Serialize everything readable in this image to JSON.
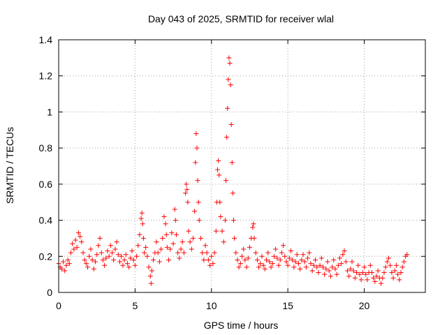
{
  "chart_data": {
    "type": "scatter",
    "title": "Day 043 of 2025, SRMTID for receiver wlal",
    "xlabel": "GPS time / hours",
    "ylabel": "SRMTID / TECUs",
    "xlim": [
      0,
      24
    ],
    "ylim": [
      0,
      1.4
    ],
    "xticks": [
      0,
      5,
      10,
      15,
      20
    ],
    "yticks": [
      0,
      0.2,
      0.4,
      0.6,
      0.8,
      1,
      1.2,
      1.4
    ],
    "xtick_labels": [
      "0",
      "5",
      "10",
      "15",
      "20"
    ],
    "ytick_labels": [
      "0",
      "0.2",
      "0.4",
      "0.6",
      "0.8",
      "1",
      "1.2",
      "1.4"
    ],
    "grid": true,
    "marker": "plus",
    "color": "#ff0000",
    "series": [
      {
        "name": "SRMTID",
        "points": [
          [
            0.0,
            0.16
          ],
          [
            0.1,
            0.14
          ],
          [
            0.2,
            0.13
          ],
          [
            0.3,
            0.17
          ],
          [
            0.4,
            0.12
          ],
          [
            0.5,
            0.15
          ],
          [
            0.6,
            0.18
          ],
          [
            0.7,
            0.16
          ],
          [
            0.8,
            0.22
          ],
          [
            0.9,
            0.27
          ],
          [
            1.0,
            0.24
          ],
          [
            1.1,
            0.29
          ],
          [
            1.2,
            0.25
          ],
          [
            1.3,
            0.33
          ],
          [
            1.4,
            0.31
          ],
          [
            1.5,
            0.28
          ],
          [
            1.6,
            0.22
          ],
          [
            1.7,
            0.18
          ],
          [
            1.8,
            0.16
          ],
          [
            1.9,
            0.14
          ],
          [
            2.0,
            0.2
          ],
          [
            2.1,
            0.24
          ],
          [
            2.2,
            0.18
          ],
          [
            2.3,
            0.13
          ],
          [
            2.4,
            0.17
          ],
          [
            2.5,
            0.21
          ],
          [
            2.6,
            0.26
          ],
          [
            2.7,
            0.3
          ],
          [
            2.8,
            0.22
          ],
          [
            2.9,
            0.18
          ],
          [
            3.0,
            0.15
          ],
          [
            3.1,
            0.19
          ],
          [
            3.2,
            0.23
          ],
          [
            3.3,
            0.2
          ],
          [
            3.4,
            0.26
          ],
          [
            3.5,
            0.22
          ],
          [
            3.6,
            0.18
          ],
          [
            3.7,
            0.24
          ],
          [
            3.8,
            0.28
          ],
          [
            3.9,
            0.21
          ],
          [
            4.0,
            0.17
          ],
          [
            4.1,
            0.2
          ],
          [
            4.2,
            0.15
          ],
          [
            4.3,
            0.18
          ],
          [
            4.4,
            0.21
          ],
          [
            4.5,
            0.16
          ],
          [
            4.6,
            0.14
          ],
          [
            4.7,
            0.19
          ],
          [
            4.8,
            0.23
          ],
          [
            4.9,
            0.18
          ],
          [
            5.0,
            0.15
          ],
          [
            5.1,
            0.2
          ],
          [
            5.2,
            0.26
          ],
          [
            5.3,
            0.32
          ],
          [
            5.4,
            0.41
          ],
          [
            5.45,
            0.44
          ],
          [
            5.5,
            0.38
          ],
          [
            5.55,
            0.3
          ],
          [
            5.6,
            0.22
          ],
          [
            5.7,
            0.25
          ],
          [
            5.8,
            0.2
          ],
          [
            5.9,
            0.14
          ],
          [
            6.0,
            0.09
          ],
          [
            6.05,
            0.05
          ],
          [
            6.1,
            0.12
          ],
          [
            6.2,
            0.18
          ],
          [
            6.3,
            0.22
          ],
          [
            6.4,
            0.28
          ],
          [
            6.5,
            0.22
          ],
          [
            6.6,
            0.17
          ],
          [
            6.7,
            0.24
          ],
          [
            6.8,
            0.3
          ],
          [
            6.9,
            0.42
          ],
          [
            7.0,
            0.38
          ],
          [
            7.05,
            0.32
          ],
          [
            7.1,
            0.25
          ],
          [
            7.2,
            0.18
          ],
          [
            7.3,
            0.24
          ],
          [
            7.4,
            0.33
          ],
          [
            7.5,
            0.27
          ],
          [
            7.6,
            0.46
          ],
          [
            7.65,
            0.4
          ],
          [
            7.7,
            0.32
          ],
          [
            7.8,
            0.22
          ],
          [
            7.9,
            0.19
          ],
          [
            8.0,
            0.24
          ],
          [
            8.1,
            0.28
          ],
          [
            8.2,
            0.22
          ],
          [
            8.3,
            0.55
          ],
          [
            8.35,
            0.6
          ],
          [
            8.4,
            0.57
          ],
          [
            8.45,
            0.5
          ],
          [
            8.5,
            0.34
          ],
          [
            8.6,
            0.28
          ],
          [
            8.7,
            0.24
          ],
          [
            8.8,
            0.3
          ],
          [
            8.9,
            0.45
          ],
          [
            8.95,
            0.72
          ],
          [
            9.0,
            0.88
          ],
          [
            9.05,
            0.8
          ],
          [
            9.1,
            0.62
          ],
          [
            9.15,
            0.5
          ],
          [
            9.2,
            0.4
          ],
          [
            9.3,
            0.3
          ],
          [
            9.4,
            0.22
          ],
          [
            9.5,
            0.18
          ],
          [
            9.6,
            0.26
          ],
          [
            9.7,
            0.22
          ],
          [
            9.8,
            0.18
          ],
          [
            9.9,
            0.15
          ],
          [
            10.0,
            0.2
          ],
          [
            10.1,
            0.16
          ],
          [
            10.2,
            0.22
          ],
          [
            10.3,
            0.34
          ],
          [
            10.35,
            0.5
          ],
          [
            10.4,
            0.68
          ],
          [
            10.45,
            0.73
          ],
          [
            10.5,
            0.65
          ],
          [
            10.55,
            0.5
          ],
          [
            10.6,
            0.42
          ],
          [
            10.7,
            0.34
          ],
          [
            10.8,
            0.28
          ],
          [
            10.9,
            0.4
          ],
          [
            10.95,
            0.62
          ],
          [
            11.0,
            0.86
          ],
          [
            11.05,
            1.02
          ],
          [
            11.1,
            1.18
          ],
          [
            11.15,
            1.3
          ],
          [
            11.2,
            1.27
          ],
          [
            11.25,
            1.15
          ],
          [
            11.3,
            0.93
          ],
          [
            11.35,
            0.72
          ],
          [
            11.4,
            0.55
          ],
          [
            11.45,
            0.4
          ],
          [
            11.5,
            0.3
          ],
          [
            11.6,
            0.22
          ],
          [
            11.7,
            0.18
          ],
          [
            11.8,
            0.14
          ],
          [
            11.9,
            0.16
          ],
          [
            12.0,
            0.2
          ],
          [
            12.1,
            0.24
          ],
          [
            12.2,
            0.18
          ],
          [
            12.3,
            0.14
          ],
          [
            12.4,
            0.19
          ],
          [
            12.5,
            0.25
          ],
          [
            12.6,
            0.3
          ],
          [
            12.7,
            0.36
          ],
          [
            12.75,
            0.38
          ],
          [
            12.8,
            0.3
          ],
          [
            12.9,
            0.22
          ],
          [
            13.0,
            0.18
          ],
          [
            13.1,
            0.14
          ],
          [
            13.2,
            0.16
          ],
          [
            13.3,
            0.2
          ],
          [
            13.4,
            0.15
          ],
          [
            13.5,
            0.13
          ],
          [
            13.6,
            0.18
          ],
          [
            13.7,
            0.22
          ],
          [
            13.8,
            0.17
          ],
          [
            13.9,
            0.14
          ],
          [
            14.0,
            0.16
          ],
          [
            14.1,
            0.2
          ],
          [
            14.2,
            0.24
          ],
          [
            14.3,
            0.19
          ],
          [
            14.4,
            0.15
          ],
          [
            14.5,
            0.18
          ],
          [
            14.6,
            0.22
          ],
          [
            14.7,
            0.26
          ],
          [
            14.8,
            0.2
          ],
          [
            14.9,
            0.17
          ],
          [
            15.0,
            0.15
          ],
          [
            15.1,
            0.19
          ],
          [
            15.2,
            0.23
          ],
          [
            15.3,
            0.18
          ],
          [
            15.4,
            0.14
          ],
          [
            15.5,
            0.17
          ],
          [
            15.6,
            0.21
          ],
          [
            15.7,
            0.16
          ],
          [
            15.8,
            0.13
          ],
          [
            15.9,
            0.18
          ],
          [
            16.0,
            0.21
          ],
          [
            16.1,
            0.17
          ],
          [
            16.2,
            0.14
          ],
          [
            16.3,
            0.19
          ],
          [
            16.4,
            0.22
          ],
          [
            16.5,
            0.16
          ],
          [
            16.6,
            0.12
          ],
          [
            16.7,
            0.15
          ],
          [
            16.8,
            0.18
          ],
          [
            16.9,
            0.14
          ],
          [
            17.0,
            0.11
          ],
          [
            17.1,
            0.15
          ],
          [
            17.2,
            0.19
          ],
          [
            17.3,
            0.14
          ],
          [
            17.4,
            0.1
          ],
          [
            17.5,
            0.13
          ],
          [
            17.6,
            0.17
          ],
          [
            17.7,
            0.12
          ],
          [
            17.8,
            0.09
          ],
          [
            17.9,
            0.14
          ],
          [
            18.0,
            0.18
          ],
          [
            18.1,
            0.13
          ],
          [
            18.2,
            0.1
          ],
          [
            18.3,
            0.15
          ],
          [
            18.4,
            0.19
          ],
          [
            18.5,
            0.16
          ],
          [
            18.6,
            0.21
          ],
          [
            18.7,
            0.23
          ],
          [
            18.8,
            0.17
          ],
          [
            18.9,
            0.12
          ],
          [
            19.0,
            0.09
          ],
          [
            19.1,
            0.13
          ],
          [
            19.2,
            0.17
          ],
          [
            19.3,
            0.12
          ],
          [
            19.4,
            0.08
          ],
          [
            19.5,
            0.11
          ],
          [
            19.6,
            0.15
          ],
          [
            19.7,
            0.1
          ],
          [
            19.8,
            0.07
          ],
          [
            19.9,
            0.11
          ],
          [
            20.0,
            0.14
          ],
          [
            20.1,
            0.1
          ],
          [
            20.2,
            0.07
          ],
          [
            20.3,
            0.11
          ],
          [
            20.4,
            0.15
          ],
          [
            20.5,
            0.11
          ],
          [
            20.6,
            0.08
          ],
          [
            20.7,
            0.06
          ],
          [
            20.8,
            0.09
          ],
          [
            20.9,
            0.12
          ],
          [
            21.0,
            0.08
          ],
          [
            21.1,
            0.05
          ],
          [
            21.2,
            0.08
          ],
          [
            21.3,
            0.11
          ],
          [
            21.4,
            0.14
          ],
          [
            21.5,
            0.17
          ],
          [
            21.6,
            0.19
          ],
          [
            21.7,
            0.15
          ],
          [
            21.8,
            0.11
          ],
          [
            21.9,
            0.08
          ],
          [
            22.0,
            0.12
          ],
          [
            22.1,
            0.15
          ],
          [
            22.2,
            0.1
          ],
          [
            22.3,
            0.07
          ],
          [
            22.4,
            0.11
          ],
          [
            22.5,
            0.14
          ],
          [
            22.6,
            0.17
          ],
          [
            22.7,
            0.2
          ],
          [
            22.8,
            0.21
          ]
        ]
      }
    ]
  }
}
